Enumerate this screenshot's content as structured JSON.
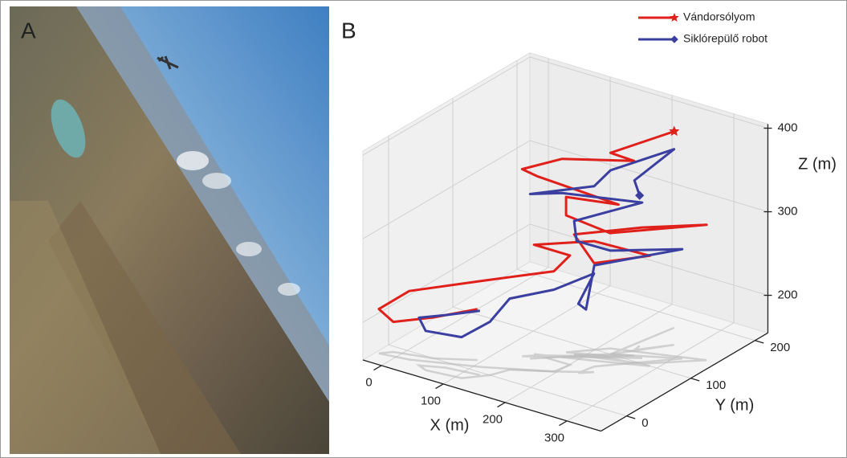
{
  "photo": {
    "label": "A"
  },
  "chart_data": {
    "type": "line3d",
    "panel_label": "B",
    "xlabel": "X (m)",
    "ylabel": "Y (m)",
    "zlabel": "Z (m)",
    "xlim": [
      -30,
      355
    ],
    "ylim": [
      -40,
      220
    ],
    "zlim": [
      155,
      405
    ],
    "xticks": [
      0,
      100,
      200,
      300
    ],
    "yticks": [
      0,
      100,
      200
    ],
    "zticks": [
      200,
      300,
      400
    ],
    "grid": true,
    "legend": "upper right",
    "series": [
      {
        "name": "Vándorsólyom",
        "color": "#e0201b",
        "marker": "star",
        "x": [
          93,
          43,
          -12,
          -25,
          19,
          110,
          196,
          201,
          143,
          219,
          289,
          209,
          187,
          276,
          339,
          214,
          174,
          174,
          238,
          149,
          134,
          178,
          253,
          225,
          245
        ],
        "y": [
          20,
          0,
          -10,
          -20,
          -15,
          10,
          40,
          60,
          60,
          80,
          100,
          90,
          80,
          100,
          140,
          110,
          80,
          80,
          100,
          60,
          50,
          70,
          110,
          100,
          180
        ],
        "z": [
          216,
          204,
          191,
          208,
          237,
          258,
          275,
          286,
          286,
          298,
          287,
          265,
          299,
          318,
          317,
          293,
          319,
          341,
          337,
          369,
          379,
          392,
          388,
          396,
          390
        ]
      },
      {
        "name": "Siklórepülő robot",
        "color": "#3a3fa0",
        "marker": "diamond",
        "x": [
          123,
          73,
          40,
          56,
          109,
          134,
          145,
          196,
          240,
          225,
          227,
          230,
          310,
          225,
          191,
          187,
          266,
          178,
          147,
          209,
          225,
          276,
          243,
          241
        ],
        "y": [
          -5,
          -10,
          -20,
          -25,
          -20,
          0,
          20,
          40,
          60,
          50,
          60,
          70,
          130,
          100,
          80,
          80,
          110,
          70,
          50,
          90,
          100,
          150,
          120,
          130
        ],
        "z": [
          232,
          218,
          212,
          202,
          204,
          219,
          240,
          253,
          273,
          238,
          227,
          276,
          286,
          279,
          292,
          315,
          341,
          351,
          352,
          357,
          375,
          389,
          358,
          335
        ]
      }
    ]
  }
}
